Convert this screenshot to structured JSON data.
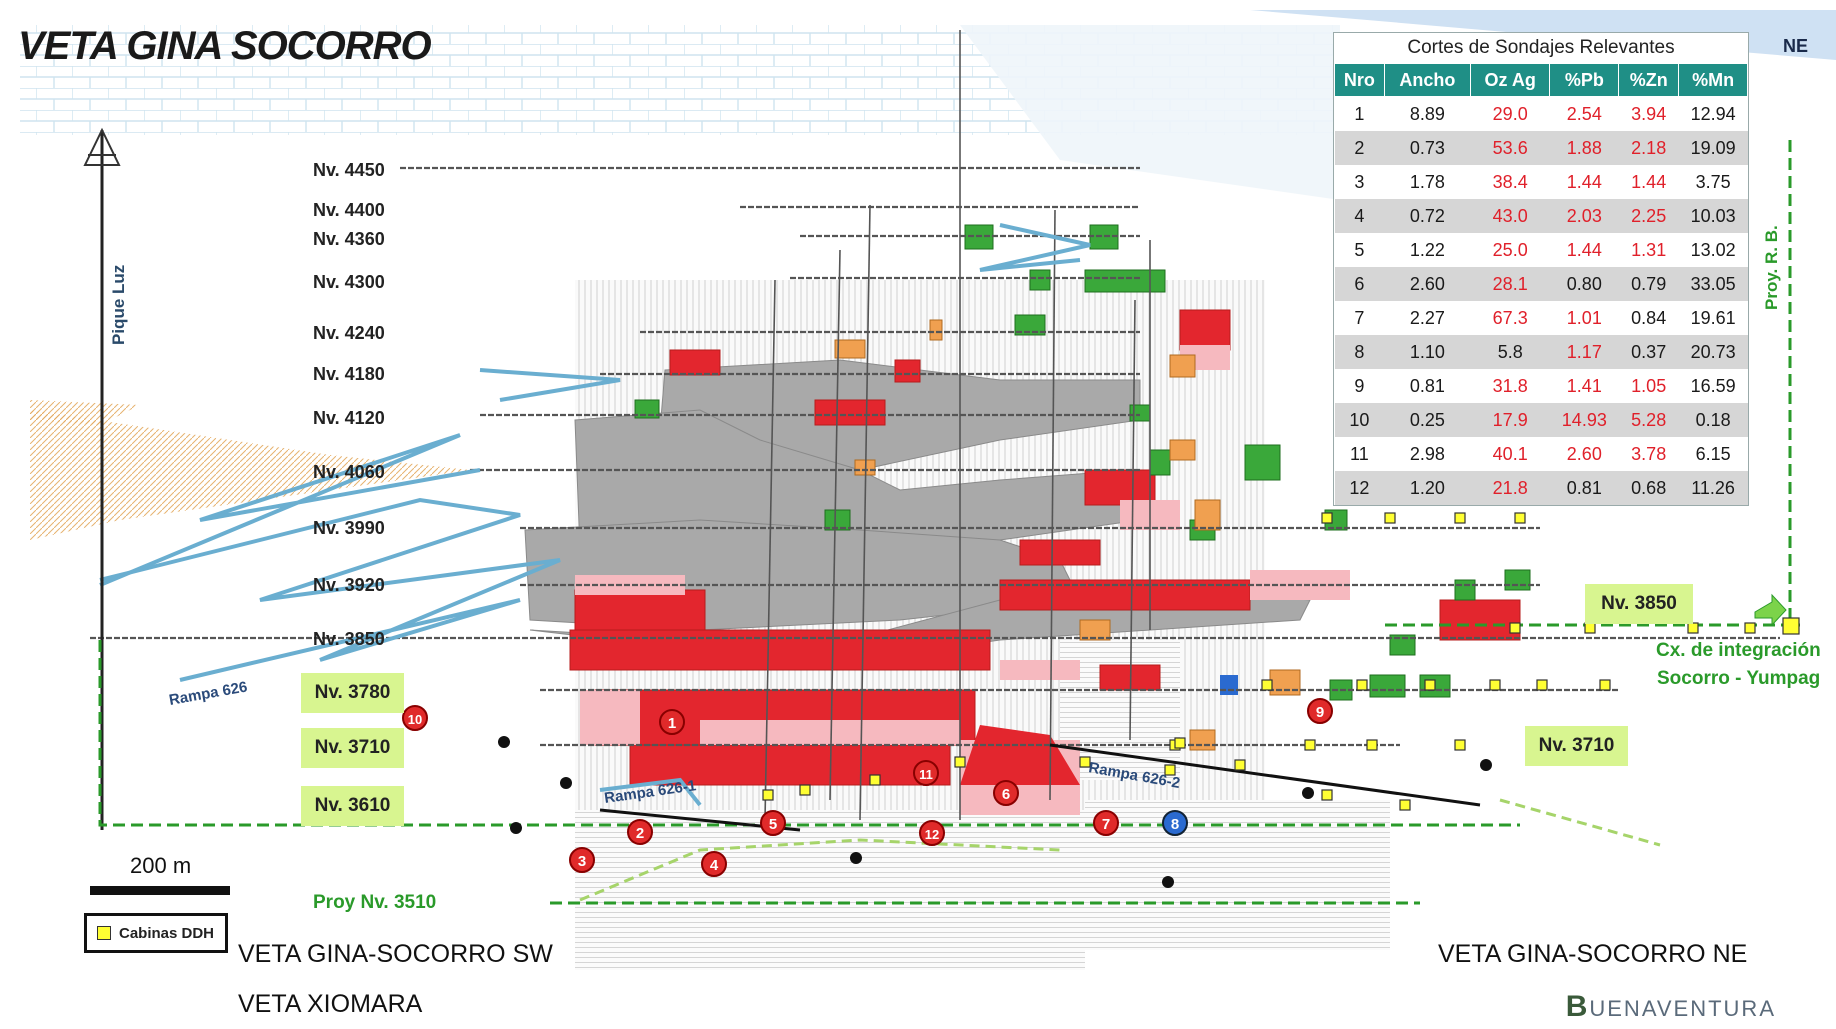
{
  "title": "VETA GINA SOCORRO",
  "corner_label": "NE",
  "table": {
    "title": "Cortes de Sondajes Relevantes",
    "headers": [
      "Nro",
      "Ancho",
      "Oz Ag",
      "%Pb",
      "%Zn",
      "%Mn"
    ],
    "rows": [
      [
        "1",
        "8.89",
        "29.0",
        "2.54",
        "3.94",
        "12.94"
      ],
      [
        "2",
        "0.73",
        "53.6",
        "1.88",
        "2.18",
        "19.09"
      ],
      [
        "3",
        "1.78",
        "38.4",
        "1.44",
        "1.44",
        "3.75"
      ],
      [
        "4",
        "0.72",
        "43.0",
        "2.03",
        "2.25",
        "10.03"
      ],
      [
        "5",
        "1.22",
        "25.0",
        "1.44",
        "1.31",
        "13.02"
      ],
      [
        "6",
        "2.60",
        "28.1",
        "0.80",
        "0.79",
        "33.05"
      ],
      [
        "7",
        "2.27",
        "67.3",
        "1.01",
        "0.84",
        "19.61"
      ],
      [
        "8",
        "1.10",
        "5.8",
        "1.17",
        "0.37",
        "20.73"
      ],
      [
        "9",
        "0.81",
        "31.8",
        "1.41",
        "1.05",
        "16.59"
      ],
      [
        "10",
        "0.25",
        "17.9",
        "14.93",
        "5.28",
        "0.18"
      ],
      [
        "11",
        "2.98",
        "40.1",
        "2.60",
        "3.78",
        "6.15"
      ],
      [
        "12",
        "1.20",
        "21.8",
        "0.81",
        "0.68",
        "11.26"
      ]
    ],
    "red_cells": [
      [
        false,
        false,
        true,
        true,
        true,
        false
      ],
      [
        false,
        false,
        true,
        true,
        true,
        false
      ],
      [
        false,
        false,
        true,
        true,
        true,
        false
      ],
      [
        false,
        false,
        true,
        true,
        true,
        false
      ],
      [
        false,
        false,
        true,
        true,
        true,
        false
      ],
      [
        false,
        false,
        true,
        false,
        false,
        false
      ],
      [
        false,
        false,
        true,
        true,
        false,
        false
      ],
      [
        false,
        false,
        false,
        true,
        false,
        false
      ],
      [
        false,
        false,
        true,
        true,
        true,
        false
      ],
      [
        false,
        false,
        true,
        true,
        true,
        false
      ],
      [
        false,
        false,
        true,
        true,
        true,
        false
      ],
      [
        false,
        false,
        true,
        false,
        false,
        false
      ]
    ]
  },
  "levels": [
    "Nv. 4450",
    "Nv. 4400",
    "Nv. 4360",
    "Nv. 4300",
    "Nv. 4240",
    "Nv. 4180",
    "Nv. 4120",
    "Nv. 4060",
    "Nv. 3990",
    "Nv. 3920",
    "Nv. 3850"
  ],
  "highlighted_levels": {
    "nv3780": "Nv. 3780",
    "nv3710": "Nv. 3710",
    "nv3610": "Nv. 3610",
    "nv3850_ne": "Nv. 3850",
    "nv3710_ne": "Nv. 3710"
  },
  "labels": {
    "shaft": "Pique Luz",
    "rampa626": "Rampa 626",
    "rampa626_1": "Rampa 626-1",
    "rampa626_2": "Rampa 626-2",
    "proy_rb": "Proy. R. B.",
    "cx_line1": "Cx. de integración",
    "cx_line2": "Socorro - Yumpag",
    "proy3510": "Proy Nv. 3510",
    "scale": "200 m",
    "legend": "Cabinas DDH",
    "sw": "VETA GINA-SOCORRO SW",
    "ne": "VETA GINA-SOCORRO NE",
    "xiomara": "VETA XIOMARA",
    "brand_initial": "B",
    "brand_rest": "UENAVENTURA"
  },
  "drill_markers": [
    "1",
    "2",
    "3",
    "4",
    "5",
    "6",
    "7",
    "8",
    "9",
    "10",
    "11",
    "12"
  ],
  "colors": {
    "high_grade": "#e3262e",
    "mid_grade": "#f6b9bf",
    "mined_out": "#a8a8a8",
    "green_block": "#3aa83a",
    "orange_block": "#f0a050",
    "teal_header": "#1f8f86",
    "projection_line": "#2a9a2a",
    "ramp": "#6aaed0",
    "badge": "#d8f590"
  }
}
